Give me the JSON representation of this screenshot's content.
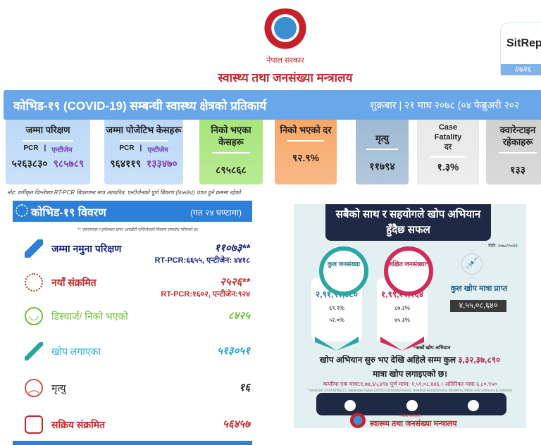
{
  "header": {
    "gov": "नेपाल सरकार",
    "ministry": "स्वास्थ्य तथा जनसंख्या मन्त्रालय",
    "sitrep_label": "SitRep",
    "sitrep_no": "#७२६"
  },
  "banner": {
    "title": "कोभिड-१९ (COVID-19) सम्बन्धी स्वास्थ्य क्षेत्रको प्रतिकार्य",
    "date": "शुक्रबार | २१ माघ २०७८ (०४ फेब्रुअरी २०२"
  },
  "cards": [
    {
      "title": "जम्मा परिक्षण",
      "sub1": "PCR",
      "sub2": "एन्टीजेन",
      "v1": "५२६३८३०",
      "v2": "९८५७८९",
      "color": "#bcd9f7"
    },
    {
      "title": "जम्मा पोजेटिभ केसहरू",
      "sub1": "PCR",
      "sub2": "एन्टीजेन",
      "v1": "९६४११९",
      "v2": "१३३४७०",
      "color": "#bcd9f7"
    },
    {
      "title": "निको भएका केसहरू",
      "value": "८९५८६८",
      "color": "#a7e57a"
    },
    {
      "title": "निको भएको दर",
      "value": "९२.९%",
      "color": "#f7a868"
    },
    {
      "title": "मृत्यु",
      "value": "११७९४",
      "color": "#9fbad3"
    },
    {
      "title": "Case Fatality दर",
      "value": "१.३%",
      "color": "#e9e9e9"
    },
    {
      "title": "क्वारेन्टाइन रहेकाहरू",
      "value": "१३३",
      "color": "#d0d0d0"
    }
  ],
  "note": "नोट: वर्गीकृत विश्लेषण RT-PCR बिवरणमा मात्र आधारित, एन्टीजेनको पूर्ण बिवरण (linelist) प्राप्त हुने क्रममा रहेको",
  "summary": {
    "title": "कोभिड-१९ विवरण",
    "period": "(गत २४ घण्टामा)",
    "footnote": "** एसएमएस र इमेलबाट प्राप्त आरडीटी एन्टिजेनको विवरण समावेश गरिएको छ।",
    "rows": [
      {
        "label": "जम्मा नमुना परिक्षण",
        "value": "११०७३**",
        "sub": "RT-PCR:६६५५, एन्टीजेन: ४४१८",
        "color": "#1a237e"
      },
      {
        "label": "नयाँ संक्रमित",
        "value": "२५२६**",
        "sub": "RT-PCR:१६०२, एन्टीजेन:९२४",
        "color": "#c62828"
      },
      {
        "label": "डिस्चार्ज/ निको भएको",
        "value": "८४२५",
        "color": "#6fbf3a"
      },
      {
        "label": "खोप लगाएका",
        "value": "५१३०५१",
        "color": "#26a6d1"
      },
      {
        "label": "मृत्यु",
        "value": "१६",
        "color": "#222222"
      },
      {
        "label": "सक्रिय संक्रमित",
        "value": "५६४५७",
        "color": "#c62828"
      }
    ]
  },
  "infographic": {
    "title": "सबैको साथ र सहयोगले खोप अभियान हुँदैछ सफल",
    "date": "मिति: २०७८/१०/२१",
    "total_pop_label": "कुल जनसंख्या",
    "total_pop": "२,९१,९२,४८०",
    "total_p1": "६९.२%",
    "total_p2": "५२.०%",
    "target_pop_label": "लक्षित जनसंख्या*",
    "target_pop": "१,९९,२२,१६४",
    "target_p1": "८७.३%",
    "target_p2": "७५.३%",
    "doses_label": "कुल खोप मात्रा प्राप्त",
    "doses": "४,५५,०८,६४०",
    "fn_target": "*अर्को खोप अभियान",
    "main1": "खोप अभियान सुरु भए देखि अहिले सम्म कुल",
    "main_total": "३,३२,३७,८९०",
    "main2": "मात्रा खोप लगाइएको छ।",
    "breakdown": "कम्तीमा एक मात्रा:१,७४,६५,४९४ पूर्ण मात्रा: १,५१,०८,४४६ । अतिरिक्त मात्रा ६,८०,९५०",
    "vaccines": "*VeroCell, COVISHIELD, Japanese made COVID-19 AstraZeneca, Swedish AstraZeneca, Moderna, Pfizer and Johnson & Johnson",
    "footer_gov": "नेपाल सरकार",
    "footer_ministry": "स्वास्थ्य तथा जनसंख्या मन्त्रालय"
  }
}
